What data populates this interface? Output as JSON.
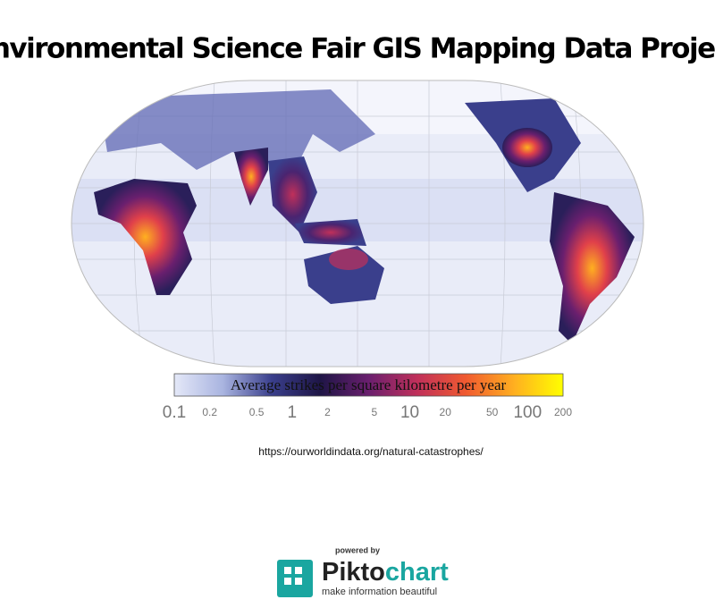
{
  "title": "Environmental Science Fair GIS Mapping Data Project",
  "map": {
    "legend": {
      "title": "Average strikes per square kilometre per year",
      "scale": "log",
      "range": [
        0.1,
        200
      ],
      "ticks": [
        0.1,
        0.2,
        0.5,
        1,
        2,
        5,
        10,
        20,
        50,
        100,
        200
      ],
      "colors": [
        "#e4e8f8",
        "#a9b4e0",
        "#3a3f8c",
        "#1e1546",
        "#6a1f6e",
        "#c0305a",
        "#f05a30",
        "#ffb020",
        "#ffff00"
      ]
    }
  },
  "source": "https://ourworldindata.org/natural-catastrophes/",
  "footer": {
    "powered_by": "powered by",
    "brand": [
      "Pikto",
      "chart"
    ],
    "tagline": "make information beautiful"
  }
}
